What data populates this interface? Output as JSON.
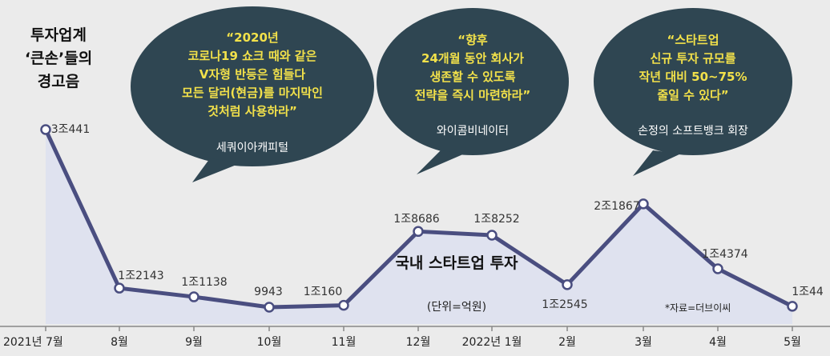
{
  "chart_data": {
    "type": "line",
    "title": "국내 스타트업 투자",
    "unit": "(단위=억원)",
    "source": "*자료=더브이씨",
    "categories": [
      "2021년 7월",
      "8월",
      "9월",
      "10월",
      "11월",
      "12월",
      "2022년 1월",
      "2월",
      "3월",
      "4월",
      "5월"
    ],
    "values": [
      30441,
      12143,
      11138,
      9943,
      10160,
      18686,
      18252,
      12545,
      21867,
      14374,
      10044
    ],
    "value_labels": [
      "3조441",
      "1조2143",
      "1조1138",
      "9943",
      "1조160",
      "1조8686",
      "1조8252",
      "1조2545",
      "2조1867",
      "1조4374",
      "1조44"
    ],
    "line_color": "#4a4e80",
    "area_color": "#dfe2ef",
    "marker_color": "#ffffff"
  },
  "headline": {
    "text": "투자업계\n‘큰손’들의\n경고음"
  },
  "quotes": [
    {
      "text": "“2020년\n코로나19 쇼크 때와 같은\nV자형 반등은 힘들다\n모든 달러(현금)를 마지막인\n것처럼 사용하라”",
      "source": "세쿼이아캐피털"
    },
    {
      "text": "“향후\n24개월 동안 회사가\n생존할 수 있도록\n전략을 즉시 마련하라”",
      "source": "와이콤비네이터"
    },
    {
      "text": "“스타트업\n신규 투자 규모를\n작년 대비 50~75%\n줄일 수 있다”",
      "source": "손정의 소프트뱅크 회장"
    }
  ],
  "colors": {
    "bubble": "#2f4652",
    "quote_text": "#f2e14a",
    "source_text": "#ffffff",
    "background": "#ebebeb"
  }
}
